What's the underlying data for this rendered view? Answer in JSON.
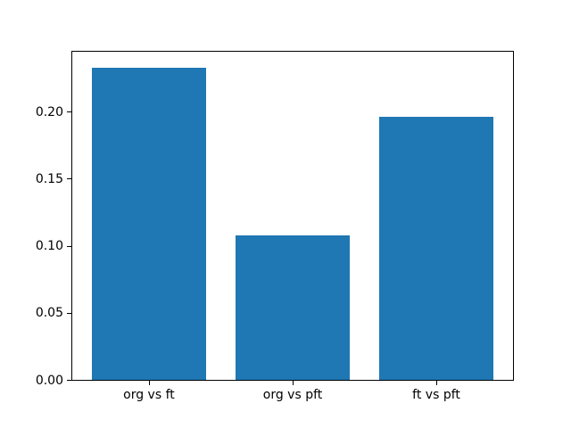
{
  "figure": {
    "background": "#ffffff",
    "bar_color": "#1f77b4",
    "spine_color": "#000000",
    "text_color": "#000000"
  },
  "chart_data": {
    "type": "bar",
    "categories": [
      "org vs ft",
      "org vs pft",
      "ft vs pft"
    ],
    "values": [
      0.233,
      0.108,
      0.196
    ],
    "title": "",
    "xlabel": "",
    "ylabel": "",
    "ylim": [
      0,
      0.2447
    ],
    "xlim": [
      -0.54,
      2.54
    ],
    "yticks": [
      0.0,
      0.05,
      0.1,
      0.15,
      0.2
    ],
    "ytick_labels": [
      "0.00",
      "0.05",
      "0.10",
      "0.15",
      "0.20"
    ],
    "bar_width_fraction": 0.8,
    "grid": false,
    "legend": false
  }
}
